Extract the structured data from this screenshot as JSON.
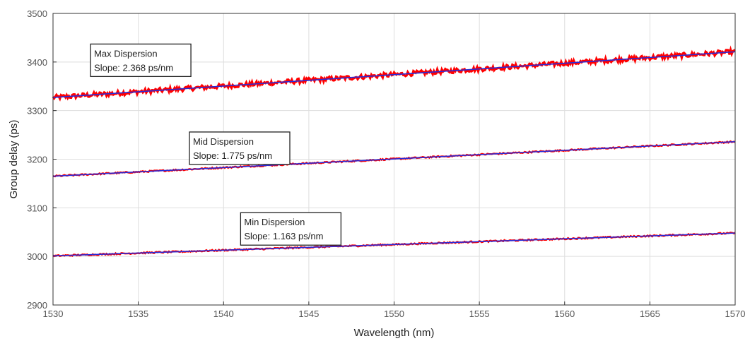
{
  "chart_data": {
    "type": "line",
    "xlabel": "Wavelength (nm)",
    "ylabel": "Group delay (ps)",
    "xlim": [
      1530,
      1570
    ],
    "ylim": [
      2900,
      3500
    ],
    "xticks": [
      "1530",
      "1535",
      "1540",
      "1545",
      "1550",
      "1555",
      "1560",
      "1565",
      "1570"
    ],
    "yticks": [
      "2900",
      "3000",
      "3100",
      "3200",
      "3300",
      "3400",
      "3500"
    ],
    "grid": true,
    "colors": {
      "measured": "#ff0000",
      "fit": "#2a2ad6"
    },
    "series": [
      {
        "x": [
          1530,
          1570
        ],
        "y": [
          3327,
          3421
        ],
        "noise": 5
      },
      {
        "x": [
          1530,
          1570
        ],
        "y": [
          3165,
          3236
        ],
        "noise": 1.5
      },
      {
        "x": [
          1530,
          1570
        ],
        "y": [
          3001,
          3048
        ],
        "noise": 1.5
      }
    ],
    "annotations": [
      {
        "line1": "Max Dispersion",
        "line2": "Slope: 2.368 ps/nm",
        "x": 1532.2,
        "y": 3437
      },
      {
        "line1": "Mid Dispersion",
        "line2": "Slope: 1.775 ps/nm",
        "x": 1538.0,
        "y": 3256
      },
      {
        "line1": "Min Dispersion",
        "line2": "Slope: 1.163 ps/nm",
        "x": 1541.0,
        "y": 3090
      }
    ]
  }
}
